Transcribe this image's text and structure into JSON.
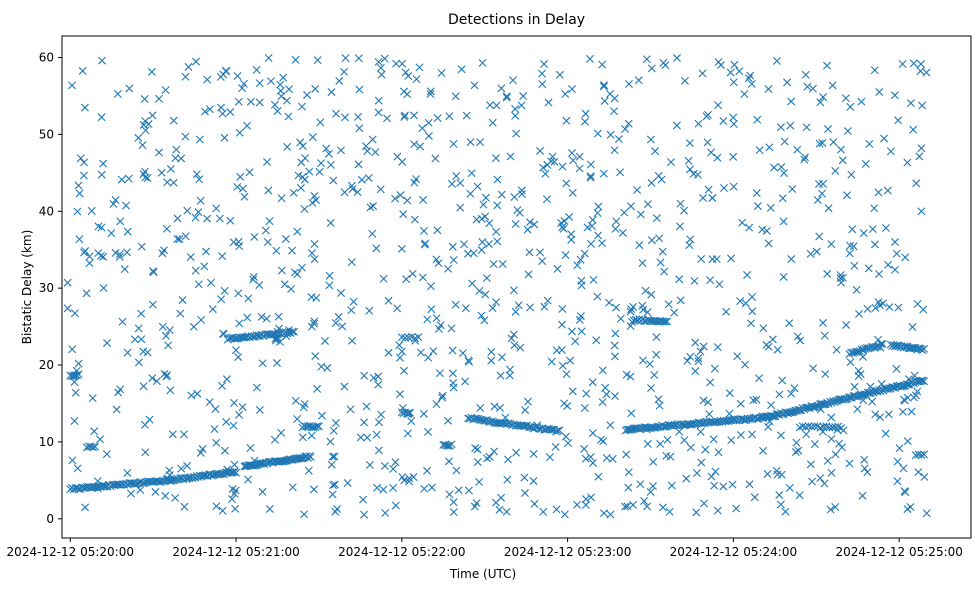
{
  "chart_data": {
    "type": "scatter",
    "title": "Detections in Delay",
    "xlabel": "Time (UTC)",
    "ylabel": "Bistatic Delay (km)",
    "date": "2024-12-12",
    "x_ticks": [
      "05:20:00",
      "05:21:00",
      "05:22:00",
      "05:23:00",
      "05:24:00",
      "05:25:00"
    ],
    "x_tick_labels": [
      "2024-12-12 05:20:00",
      "2024-12-12 05:21:00",
      "2024-12-12 05:22:00",
      "2024-12-12 05:23:00",
      "2024-12-12 05:24:00",
      "2024-12-12 05:25:00"
    ],
    "xlim": [
      "05:19:57",
      "05:25:26"
    ],
    "ylim": [
      -2.5,
      62.8
    ],
    "y_ticks": [
      0,
      10,
      20,
      30,
      40,
      50,
      60
    ],
    "marker": "x",
    "color": "#1f77b4",
    "grid": false,
    "tracks": [
      {
        "x0": "05:20:00",
        "x1": "05:20:36",
        "y0": 3.9,
        "y1": 5.0,
        "n": 60
      },
      {
        "x0": "05:20:36",
        "x1": "05:21:00",
        "y0": 5.0,
        "y1": 6.1,
        "n": 45
      },
      {
        "x0": "05:21:03",
        "x1": "05:21:27",
        "y0": 6.8,
        "y1": 8.1,
        "n": 50
      },
      {
        "x0": "05:20:57",
        "x1": "05:21:21",
        "y0": 23.4,
        "y1": 24.3,
        "n": 40
      },
      {
        "x0": "05:21:24",
        "x1": "05:21:30",
        "y0": 12.0,
        "y1": 12.0,
        "n": 10
      },
      {
        "x0": "05:22:00",
        "x1": "05:22:03",
        "y0": 13.9,
        "y1": 13.7,
        "n": 6
      },
      {
        "x0": "05:22:00",
        "x1": "05:22:06",
        "y0": 23.6,
        "y1": 23.6,
        "n": 6
      },
      {
        "x0": "05:22:24",
        "x1": "05:22:57",
        "y0": 13.1,
        "y1": 11.4,
        "n": 55
      },
      {
        "x0": "05:23:21",
        "x1": "05:24:12",
        "y0": 11.6,
        "y1": 13.2,
        "n": 90
      },
      {
        "x0": "05:24:12",
        "x1": "05:25:09",
        "y0": 13.2,
        "y1": 18.0,
        "n": 110
      },
      {
        "x0": "05:23:24",
        "x1": "05:23:36",
        "y0": 25.9,
        "y1": 25.6,
        "n": 20
      },
      {
        "x0": "05:24:42",
        "x1": "05:24:54",
        "y0": 21.5,
        "y1": 22.7,
        "n": 20
      },
      {
        "x0": "05:24:57",
        "x1": "05:25:09",
        "y0": 22.6,
        "y1": 22.0,
        "n": 25
      },
      {
        "x0": "05:24:24",
        "x1": "05:24:39",
        "y0": 12.0,
        "y1": 11.9,
        "n": 15
      },
      {
        "x0": "05:20:00",
        "x1": "05:20:03",
        "y0": 18.6,
        "y1": 18.7,
        "n": 6
      },
      {
        "x0": "05:20:06",
        "x1": "05:20:09",
        "y0": 9.3,
        "y1": 9.4,
        "n": 5
      },
      {
        "x0": "05:25:06",
        "x1": "05:25:09",
        "y0": 8.2,
        "y1": 8.3,
        "n": 4
      },
      {
        "x0": "05:22:15",
        "x1": "05:22:18",
        "y0": 9.6,
        "y1": 9.6,
        "n": 6
      }
    ],
    "noise": {
      "x_range": [
        "05:19:59",
        "05:25:10"
      ],
      "y_range": [
        0.5,
        60
      ],
      "n": 1150
    }
  }
}
